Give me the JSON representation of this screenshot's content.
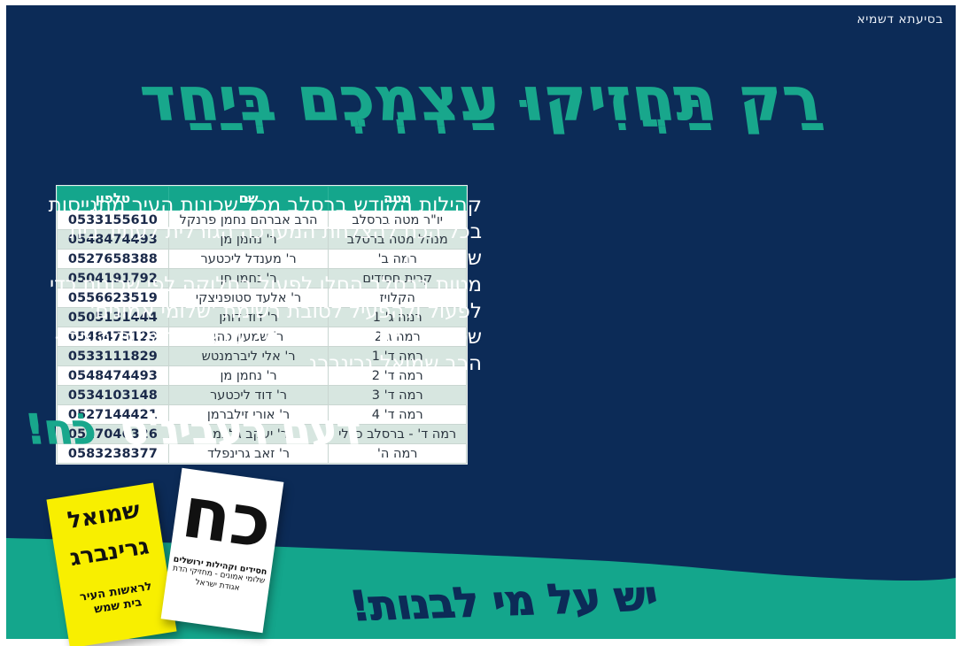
{
  "page": {
    "top_note": "בסיעתא דשמיא",
    "headline": "רַק תַּחֲזִיקוּ עַצְמְכֶם בְּיַחַד"
  },
  "colors": {
    "navy": "#0c2b57",
    "teal": "#14a68c",
    "table_alt_row": "#d7e6e0",
    "card_yellow": "#f8ef00"
  },
  "table": {
    "headers": {
      "area": "מטה",
      "name": "שם",
      "phone": "טלפון"
    },
    "rows": [
      {
        "area": "יו\"ר מטה ברסלב",
        "name": "הרב אברהם נחמן פרנקל",
        "phone": "0533155610"
      },
      {
        "area": "מנהל מטה ברסלב",
        "name": "ר' נחמן מן",
        "phone": "0548474493"
      },
      {
        "area": "רמה ב'",
        "name": "ר' מענדל ליכטער",
        "phone": "0527658388"
      },
      {
        "area": "קרית חסידים",
        "name": "ר' נחמן חן",
        "phone": "0504191792"
      },
      {
        "area": "הקלויז",
        "name": "ר' אלעד סטופניצקי",
        "phone": "0556623519"
      },
      {
        "area": "רמה ג' 1",
        "name": "ר' דוד דותן",
        "phone": "0505131444"
      },
      {
        "area": "רמה ג 2",
        "name": "ר' שמעון כהן",
        "phone": "0548475123"
      },
      {
        "area": "רמה ד' 1",
        "name": "ר' אלי ליברמנטש",
        "phone": "0533111829"
      },
      {
        "area": "רמה ד' 2",
        "name": "ר' נחמן מן",
        "phone": "0548474493"
      },
      {
        "area": "רמה ד' 3",
        "name": "ר' דוד ליכטער",
        "phone": "0534103148"
      },
      {
        "area": "רמה ד' 4",
        "name": "ר' אורי זילברמן",
        "phone": "0527144421"
      },
      {
        "area": "רמה ד' - ברסלב כללי",
        "name": "ר' יעקב גלבמן",
        "phone": "0527046326"
      },
      {
        "area": "רמה ה'",
        "name": "ר' זאב גרינפלד",
        "phone": "0583238377"
      }
    ]
  },
  "body_text": {
    "para1": "קהילות הקודש ברסלב מכל שכונות העיר מתגייסות בכל הכח להצלחת המערכה הגורלית לעתיד בית שמש ת\"ו.",
    "para2": "מטות ברסלב החלו לפעול בחלוקה לפי שכונות כדי לפעול ולהפעיל לטובת רשימת 'שלומי אמונים' שסימנה 'כח' ומועמד גדולי ישראל לראשות העיר - הרב שמואל גרינברג."
  },
  "slogan": {
    "lead": "דעם רעבינ'ס",
    "highlight": "כֹח!"
  },
  "wave": {
    "text": "יש על מי לבנות!"
  },
  "cards": {
    "yellow": {
      "name_line1": "שמואל",
      "name_line2": "גרינברג",
      "sub_line1": "לראשות העיר",
      "sub_line2": "בית שמש"
    },
    "white": {
      "big_letters": "כח",
      "line1": "חסידים וקהילות ירושלים",
      "line2": "שלומי אמונים - מחזיקי הדת",
      "line3": "אגודת ישראל"
    }
  }
}
